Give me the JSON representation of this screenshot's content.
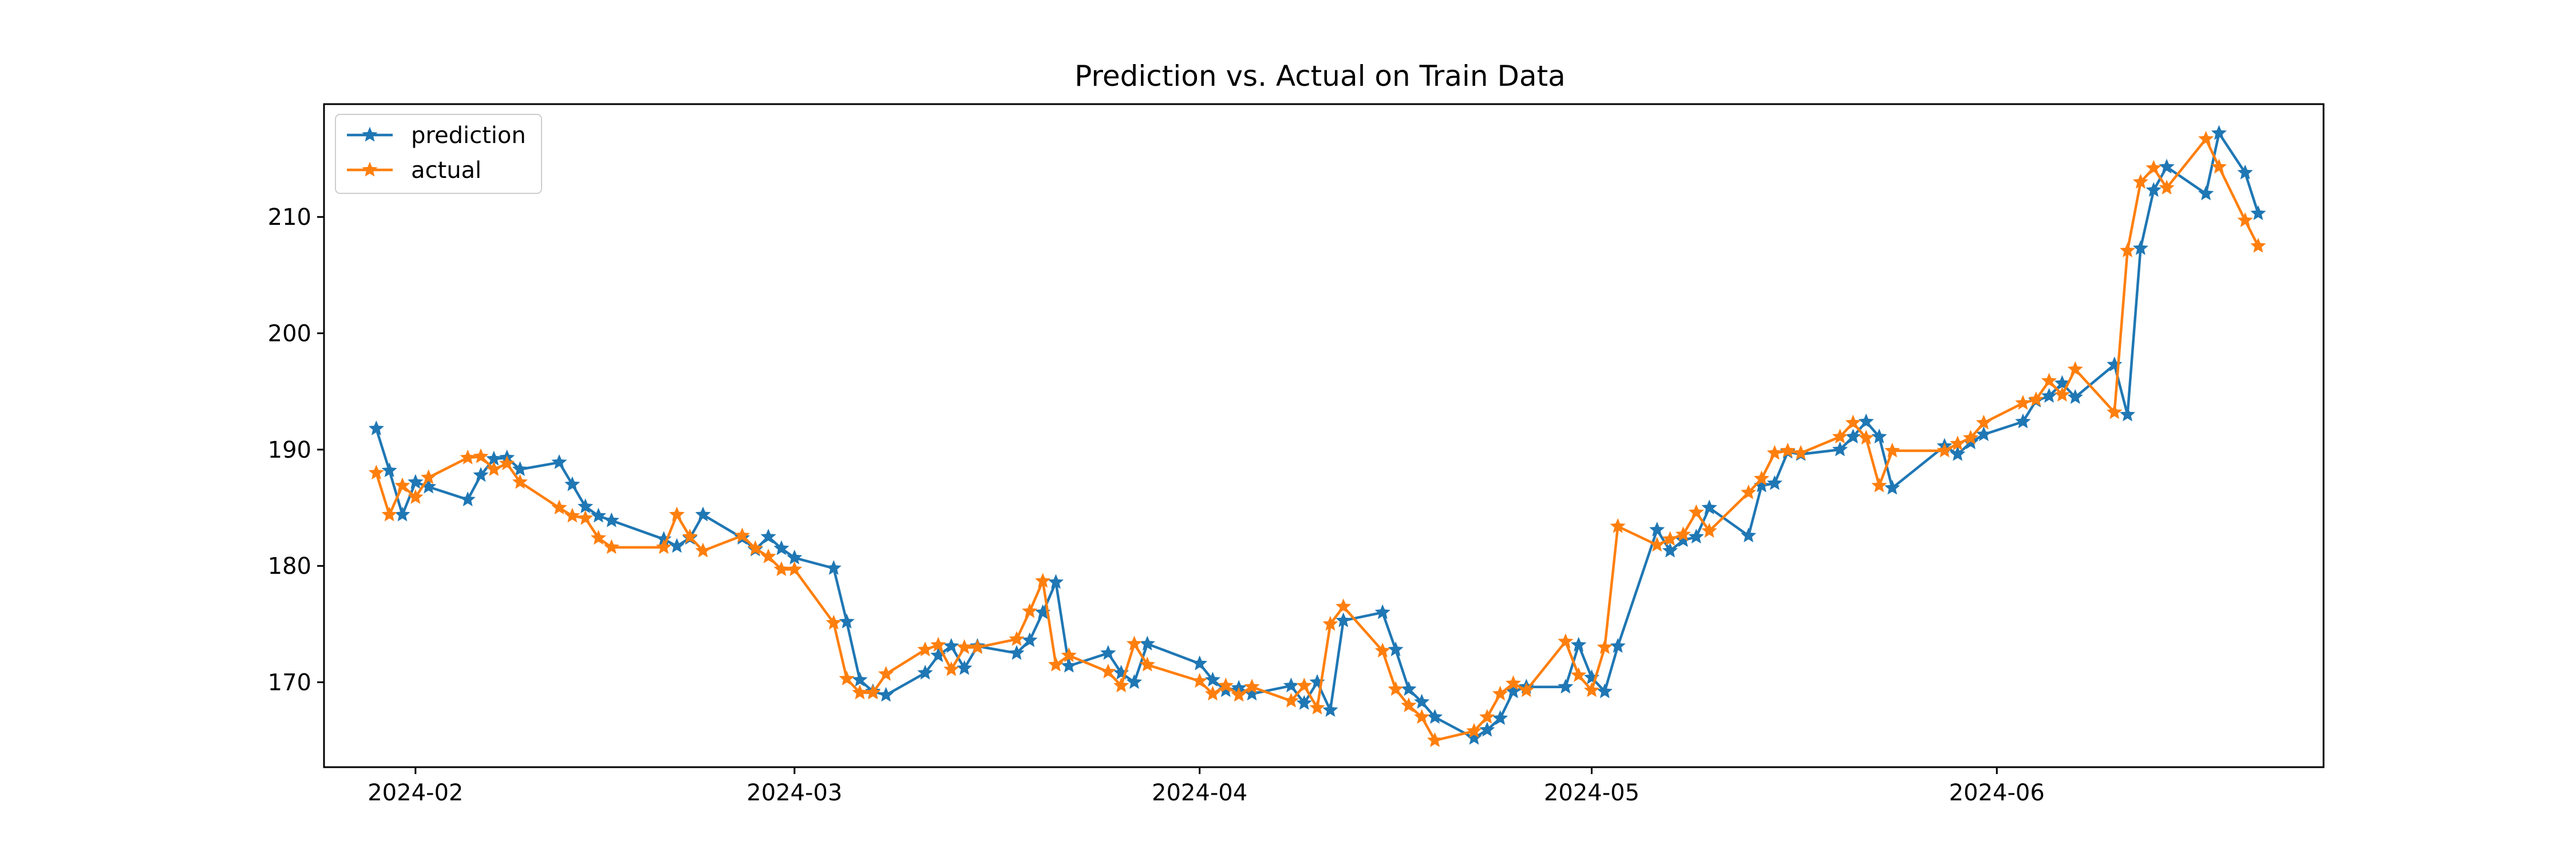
{
  "chart_data": {
    "type": "line",
    "title": "Prediction vs. Actual on Train Data",
    "xlabel": "",
    "ylabel": "",
    "x_axis_type": "date",
    "xlim": [
      "2024-01-25",
      "2024-06-26"
    ],
    "ylim": [
      162.7,
      219.7
    ],
    "xticks": [
      {
        "value": "2024-02-01",
        "label": "2024-02"
      },
      {
        "value": "2024-03-01",
        "label": "2024-03"
      },
      {
        "value": "2024-04-01",
        "label": "2024-04"
      },
      {
        "value": "2024-05-01",
        "label": "2024-05"
      },
      {
        "value": "2024-06-01",
        "label": "2024-06"
      }
    ],
    "yticks": [
      170,
      180,
      190,
      200,
      210
    ],
    "grid": false,
    "legend_position": "top-left",
    "marker": "star",
    "x": [
      "2024-01-29",
      "2024-01-30",
      "2024-01-31",
      "2024-02-01",
      "2024-02-02",
      "2024-02-05",
      "2024-02-06",
      "2024-02-07",
      "2024-02-08",
      "2024-02-09",
      "2024-02-12",
      "2024-02-13",
      "2024-02-14",
      "2024-02-15",
      "2024-02-16",
      "2024-02-20",
      "2024-02-21",
      "2024-02-22",
      "2024-02-23",
      "2024-02-26",
      "2024-02-27",
      "2024-02-28",
      "2024-02-29",
      "2024-03-01",
      "2024-03-04",
      "2024-03-05",
      "2024-03-06",
      "2024-03-07",
      "2024-03-08",
      "2024-03-11",
      "2024-03-12",
      "2024-03-13",
      "2024-03-14",
      "2024-03-15",
      "2024-03-18",
      "2024-03-19",
      "2024-03-20",
      "2024-03-21",
      "2024-03-22",
      "2024-03-25",
      "2024-03-26",
      "2024-03-27",
      "2024-03-28",
      "2024-04-01",
      "2024-04-02",
      "2024-04-03",
      "2024-04-04",
      "2024-04-05",
      "2024-04-08",
      "2024-04-09",
      "2024-04-10",
      "2024-04-11",
      "2024-04-12",
      "2024-04-15",
      "2024-04-16",
      "2024-04-17",
      "2024-04-18",
      "2024-04-19",
      "2024-04-22",
      "2024-04-23",
      "2024-04-24",
      "2024-04-25",
      "2024-04-26",
      "2024-04-29",
      "2024-04-30",
      "2024-05-01",
      "2024-05-02",
      "2024-05-03",
      "2024-05-06",
      "2024-05-07",
      "2024-05-08",
      "2024-05-09",
      "2024-05-10",
      "2024-05-13",
      "2024-05-14",
      "2024-05-15",
      "2024-05-16",
      "2024-05-17",
      "2024-05-20",
      "2024-05-21",
      "2024-05-22",
      "2024-05-23",
      "2024-05-24",
      "2024-05-28",
      "2024-05-29",
      "2024-05-30",
      "2024-05-31",
      "2024-06-03",
      "2024-06-04",
      "2024-06-05",
      "2024-06-06",
      "2024-06-07",
      "2024-06-10",
      "2024-06-11",
      "2024-06-12",
      "2024-06-13",
      "2024-06-14",
      "2024-06-17",
      "2024-06-18",
      "2024-06-20",
      "2024-06-21"
    ],
    "series": [
      {
        "name": "prediction",
        "color": "#1f77b4",
        "values": [
          191.8,
          188.2,
          184.4,
          187.2,
          186.8,
          185.7,
          187.8,
          189.2,
          189.3,
          188.3,
          188.9,
          187.0,
          185.1,
          184.3,
          183.9,
          182.3,
          181.7,
          182.4,
          184.4,
          182.4,
          181.4,
          182.5,
          181.5,
          180.7,
          179.8,
          175.2,
          170.2,
          169.2,
          168.9,
          170.8,
          172.3,
          173.1,
          171.2,
          173.1,
          172.5,
          173.6,
          176.0,
          178.6,
          171.4,
          172.5,
          170.8,
          170.0,
          173.3,
          171.6,
          170.2,
          169.3,
          169.5,
          169.0,
          169.7,
          168.2,
          170.0,
          167.6,
          175.3,
          176.0,
          172.8,
          169.4,
          168.3,
          167.0,
          165.2,
          165.9,
          166.9,
          169.2,
          169.6,
          169.6,
          173.2,
          170.4,
          169.2,
          173.1,
          183.1,
          181.3,
          182.2,
          182.5,
          185.0,
          182.6,
          186.9,
          187.1,
          189.8,
          189.6,
          190.0,
          191.1,
          192.4,
          191.1,
          186.7,
          190.3,
          189.6,
          190.6,
          191.3,
          192.4,
          194.2,
          194.6,
          195.7,
          194.5,
          197.3,
          193.0,
          207.3,
          212.3,
          214.3,
          212.0,
          217.2,
          213.8,
          210.3
        ]
      },
      {
        "name": "actual",
        "color": "#ff7f0e",
        "values": [
          188.0,
          184.4,
          186.9,
          185.9,
          187.6,
          189.3,
          189.4,
          188.3,
          188.8,
          187.2,
          185.0,
          184.3,
          184.1,
          182.4,
          181.6,
          181.6,
          184.4,
          182.5,
          181.3,
          182.6,
          181.5,
          180.8,
          179.7,
          179.7,
          175.1,
          170.3,
          169.1,
          169.1,
          170.7,
          172.8,
          173.2,
          171.1,
          173.0,
          173.0,
          173.7,
          176.1,
          178.7,
          171.5,
          172.3,
          170.9,
          169.7,
          173.3,
          171.5,
          170.1,
          169.0,
          169.7,
          168.9,
          169.6,
          168.4,
          169.7,
          167.8,
          175.0,
          176.5,
          172.7,
          169.4,
          168.0,
          167.0,
          165.0,
          165.8,
          167.0,
          169.0,
          169.9,
          169.3,
          173.5,
          170.6,
          169.3,
          173.0,
          183.4,
          181.8,
          182.3,
          182.7,
          184.6,
          183.0,
          186.3,
          187.5,
          189.7,
          189.9,
          189.7,
          191.1,
          192.3,
          191.0,
          186.9,
          189.9,
          189.9,
          190.5,
          191.0,
          192.3,
          194.0,
          194.3,
          195.9,
          194.7,
          196.9,
          193.2,
          207.1,
          213.0,
          214.2,
          212.5,
          216.7,
          214.3,
          209.7,
          207.5
        ]
      }
    ]
  }
}
